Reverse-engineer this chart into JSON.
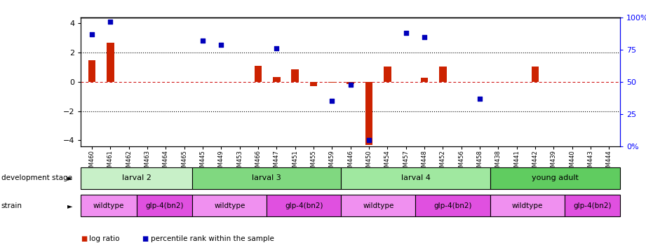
{
  "samples": [
    "GSM460",
    "GSM461",
    "GSM462",
    "GSM463",
    "GSM464",
    "GSM465",
    "GSM445",
    "GSM449",
    "GSM453",
    "GSM466",
    "GSM447",
    "GSM451",
    "GSM455",
    "GSM459",
    "GSM446",
    "GSM450",
    "GSM454",
    "GSM457",
    "GSM448",
    "GSM452",
    "GSM456",
    "GSM458",
    "GSM438",
    "GSM441",
    "GSM442",
    "GSM439",
    "GSM440",
    "GSM443",
    "GSM444"
  ],
  "log_ratio": [
    1.5,
    2.7,
    0.0,
    0.0,
    0.0,
    0.0,
    0.0,
    0.0,
    0.0,
    1.1,
    0.35,
    0.85,
    -0.3,
    -0.05,
    -0.15,
    -4.3,
    1.05,
    0.0,
    0.3,
    1.05,
    0.0,
    0.0,
    0.0,
    0.0,
    1.05,
    0.0,
    0.0,
    0.0,
    0.0
  ],
  "percentile": [
    87,
    97,
    0,
    0,
    0,
    0,
    82,
    79,
    0,
    0,
    76,
    0,
    0,
    35,
    48,
    5,
    0,
    88,
    85,
    0,
    0,
    37,
    0,
    0,
    0,
    0,
    0,
    0,
    0
  ],
  "dev_stages": [
    {
      "label": "larval 2",
      "start": 0,
      "end": 6,
      "color": "#c8f0c8"
    },
    {
      "label": "larval 3",
      "start": 6,
      "end": 14,
      "color": "#80d880"
    },
    {
      "label": "larval 4",
      "start": 14,
      "end": 22,
      "color": "#a0e8a0"
    },
    {
      "label": "young adult",
      "start": 22,
      "end": 29,
      "color": "#60cc60"
    }
  ],
  "strains": [
    {
      "label": "wildtype",
      "start": 0,
      "end": 3,
      "color": "#f090f0"
    },
    {
      "label": "glp-4(bn2)",
      "start": 3,
      "end": 6,
      "color": "#e050e0"
    },
    {
      "label": "wildtype",
      "start": 6,
      "end": 10,
      "color": "#f090f0"
    },
    {
      "label": "glp-4(bn2)",
      "start": 10,
      "end": 14,
      "color": "#e050e0"
    },
    {
      "label": "wildtype",
      "start": 14,
      "end": 18,
      "color": "#f090f0"
    },
    {
      "label": "glp-4(bn2)",
      "start": 18,
      "end": 22,
      "color": "#e050e0"
    },
    {
      "label": "wildtype",
      "start": 22,
      "end": 26,
      "color": "#f090f0"
    },
    {
      "label": "glp-4(bn2)",
      "start": 26,
      "end": 29,
      "color": "#e050e0"
    }
  ],
  "bar_color": "#cc2200",
  "scatter_color": "#0000bb",
  "dashed_zero_color": "#cc0000",
  "ylim": [
    -4.4,
    4.4
  ],
  "y2lim": [
    0,
    100
  ],
  "yticks": [
    -4,
    -2,
    0,
    2,
    4
  ],
  "y2ticks": [
    0,
    25,
    50,
    75,
    100
  ],
  "y2ticklabels": [
    "0%",
    "25",
    "50",
    "75",
    "100%"
  ],
  "dotted_lines": [
    2,
    -2
  ],
  "legend_items": [
    {
      "label": "log ratio",
      "color": "#cc2200"
    },
    {
      "label": "percentile rank within the sample",
      "color": "#0000bb"
    }
  ]
}
